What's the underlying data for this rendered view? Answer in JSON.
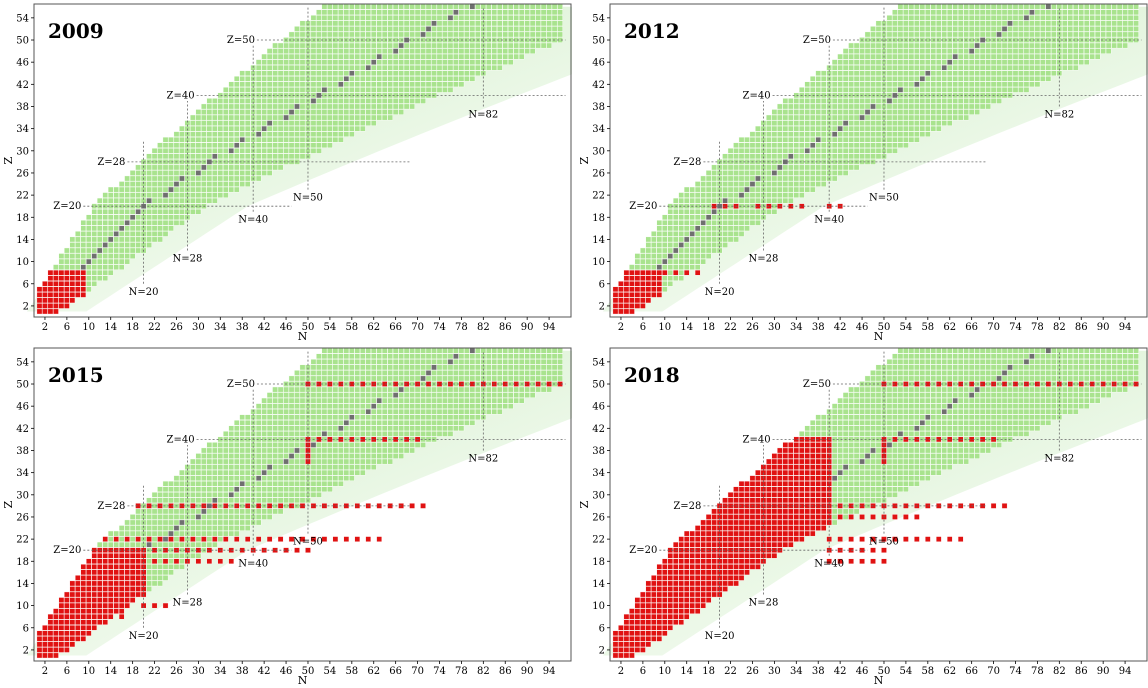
{
  "figure": {
    "colors": {
      "background": "#ffffff",
      "plot_background": "#ffffff",
      "band_light": "#e8f6e2",
      "band_mid": "#c7ebbc",
      "known_nucleus": "#a9e38e",
      "stable_nucleus": "#6f6f6f",
      "computed_nucleus": "#e01212",
      "grid_line": "#ffffff",
      "magic_line": "#666666",
      "frame": "#555555"
    }
  },
  "chart_data": [
    {
      "type": "heatmap",
      "title": "2009",
      "xlabel": "N",
      "ylabel": "Z",
      "xlim": [
        0,
        98
      ],
      "ylim": [
        0,
        56.5
      ],
      "xticks": [
        "2",
        "6",
        "10",
        "14",
        "18",
        "22",
        "26",
        "30",
        "34",
        "38",
        "42",
        "46",
        "50",
        "54",
        "58",
        "62",
        "66",
        "70",
        "74",
        "78",
        "82",
        "86",
        "90",
        "94"
      ],
      "yticks": [
        "2",
        "6",
        "10",
        "14",
        "18",
        "22",
        "26",
        "30",
        "34",
        "38",
        "42",
        "46",
        "50",
        "54"
      ],
      "magic_labels": [
        {
          "text": "Z=20",
          "value": 20
        },
        {
          "text": "Z=28",
          "value": 28
        },
        {
          "text": "Z=40",
          "value": 40
        },
        {
          "text": "Z=50",
          "value": 50
        },
        {
          "text": "N=20",
          "value": 20
        },
        {
          "text": "N=28",
          "value": 28
        },
        {
          "text": "N=40",
          "value": 40
        },
        {
          "text": "N=50",
          "value": 50
        },
        {
          "text": "N=82",
          "value": 82
        }
      ],
      "red_shapes": [
        {
          "type": "region",
          "z_min": 1,
          "z_max": 8,
          "n_min": 1,
          "n_max": 9
        }
      ]
    },
    {
      "type": "heatmap",
      "title": "2012",
      "xlabel": "N",
      "ylabel": "Z",
      "xlim": [
        0,
        98
      ],
      "ylim": [
        0,
        56.5
      ],
      "xticks": [
        "2",
        "6",
        "10",
        "14",
        "18",
        "22",
        "26",
        "30",
        "34",
        "38",
        "42",
        "46",
        "50",
        "54",
        "58",
        "62",
        "66",
        "70",
        "74",
        "78",
        "82",
        "86",
        "90",
        "94"
      ],
      "yticks": [
        "2",
        "6",
        "10",
        "14",
        "18",
        "22",
        "26",
        "30",
        "34",
        "38",
        "42",
        "46",
        "50",
        "54"
      ],
      "magic_labels": [
        {
          "text": "Z=20",
          "value": 20
        },
        {
          "text": "Z=28",
          "value": 28
        },
        {
          "text": "Z=40",
          "value": 40
        },
        {
          "text": "Z=50",
          "value": 50
        },
        {
          "text": "N=20",
          "value": 20
        },
        {
          "text": "N=28",
          "value": 28
        },
        {
          "text": "N=40",
          "value": 40
        },
        {
          "text": "N=50",
          "value": 50
        },
        {
          "text": "N=82",
          "value": 82
        }
      ],
      "red_shapes": [
        {
          "type": "region",
          "z_min": 1,
          "z_max": 8,
          "n_min": 1,
          "n_max": 9
        },
        {
          "type": "row",
          "z": 8,
          "n_min": 10,
          "n_max": 16
        },
        {
          "type": "row",
          "z": 20,
          "n_min": 19,
          "n_max": 24
        },
        {
          "type": "row",
          "z": 20,
          "n_min": 27,
          "n_max": 36
        },
        {
          "type": "row",
          "z": 20,
          "n_min": 40,
          "n_max": 42
        }
      ]
    },
    {
      "type": "heatmap",
      "title": "2015",
      "xlabel": "N",
      "ylabel": "Z",
      "xlim": [
        0,
        98
      ],
      "ylim": [
        0,
        56.5
      ],
      "xticks": [
        "2",
        "6",
        "10",
        "14",
        "18",
        "22",
        "26",
        "30",
        "34",
        "38",
        "42",
        "46",
        "50",
        "54",
        "58",
        "62",
        "66",
        "70",
        "74",
        "78",
        "82",
        "86",
        "90",
        "94"
      ],
      "yticks": [
        "2",
        "6",
        "10",
        "14",
        "18",
        "22",
        "26",
        "30",
        "34",
        "38",
        "42",
        "46",
        "50",
        "54"
      ],
      "magic_labels": [
        {
          "text": "Z=20",
          "value": 20
        },
        {
          "text": "Z=28",
          "value": 28
        },
        {
          "text": "Z=40",
          "value": 40
        },
        {
          "text": "Z=50",
          "value": 50
        },
        {
          "text": "N=20",
          "value": 20
        },
        {
          "text": "N=28",
          "value": 28
        },
        {
          "text": "N=40",
          "value": 40
        },
        {
          "text": "N=50",
          "value": 50
        },
        {
          "text": "N=82",
          "value": 82
        }
      ],
      "red_shapes": [
        {
          "type": "region",
          "z_min": 1,
          "z_max": 20,
          "n_min": 1,
          "n_max": 20
        },
        {
          "type": "row",
          "z": 8,
          "n_min": 10,
          "n_max": 16
        },
        {
          "type": "row",
          "z": 10,
          "n_min": 20,
          "n_max": 25
        },
        {
          "type": "row",
          "z": 18,
          "n_min": 20,
          "n_max": 36
        },
        {
          "type": "row",
          "z": 20,
          "n_min": 20,
          "n_max": 50
        },
        {
          "type": "row",
          "z": 22,
          "n_min": 13,
          "n_max": 64
        },
        {
          "type": "row",
          "z": 28,
          "n_min": 19,
          "n_max": 72
        },
        {
          "type": "row",
          "z": 40,
          "n_min": 50,
          "n_max": 70
        },
        {
          "type": "col",
          "n": 50,
          "z_min": 36,
          "z_max": 40
        },
        {
          "type": "row",
          "z": 50,
          "n_min": 50,
          "n_max": 96
        }
      ]
    },
    {
      "type": "heatmap",
      "title": "2018",
      "xlabel": "N",
      "ylabel": "Z",
      "xlim": [
        0,
        98
      ],
      "ylim": [
        0,
        56.5
      ],
      "xticks": [
        "2",
        "6",
        "10",
        "14",
        "18",
        "22",
        "26",
        "30",
        "34",
        "38",
        "42",
        "46",
        "50",
        "54",
        "58",
        "62",
        "66",
        "70",
        "74",
        "78",
        "82",
        "86",
        "90",
        "94"
      ],
      "yticks": [
        "2",
        "6",
        "10",
        "14",
        "18",
        "22",
        "26",
        "30",
        "34",
        "38",
        "42",
        "46",
        "50",
        "54"
      ],
      "magic_labels": [
        {
          "text": "Z=20",
          "value": 20
        },
        {
          "text": "Z=28",
          "value": 28
        },
        {
          "text": "Z=40",
          "value": 40
        },
        {
          "text": "Z=50",
          "value": 50
        },
        {
          "text": "N=20",
          "value": 20
        },
        {
          "text": "N=28",
          "value": 28
        },
        {
          "text": "N=40",
          "value": 40
        },
        {
          "text": "N=50",
          "value": 50
        },
        {
          "text": "N=82",
          "value": 82
        }
      ],
      "red_shapes": [
        {
          "type": "region",
          "z_min": 1,
          "z_max": 40,
          "n_min": 1,
          "n_max": 40
        },
        {
          "type": "row",
          "z": 18,
          "n_min": 40,
          "n_max": 50
        },
        {
          "type": "row",
          "z": 20,
          "n_min": 40,
          "n_max": 50
        },
        {
          "type": "row",
          "z": 22,
          "n_min": 40,
          "n_max": 64
        },
        {
          "type": "row",
          "z": 26,
          "n_min": 40,
          "n_max": 56
        },
        {
          "type": "row",
          "z": 28,
          "n_min": 40,
          "n_max": 72
        },
        {
          "type": "row",
          "z": 40,
          "n_min": 50,
          "n_max": 70
        },
        {
          "type": "col",
          "n": 50,
          "z_min": 36,
          "z_max": 40
        },
        {
          "type": "row",
          "z": 50,
          "n_min": 50,
          "n_max": 96
        }
      ]
    }
  ]
}
